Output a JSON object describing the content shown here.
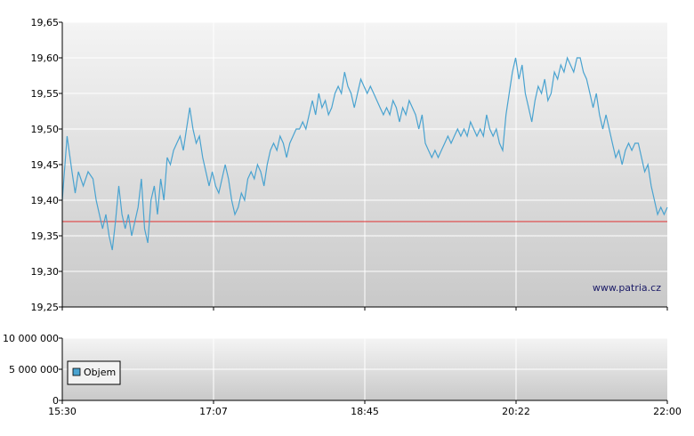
{
  "watermark": "www.patria.cz",
  "chart_data": [
    {
      "type": "line",
      "title": "",
      "xlabel": "",
      "ylabel": "",
      "x_ticks": [
        "15:30",
        "17:07",
        "18:45",
        "20:22",
        "22:00"
      ],
      "y_ticks": [
        "19,25",
        "19,30",
        "19,35",
        "19,40",
        "19,45",
        "19,50",
        "19,55",
        "19,60",
        "19,65"
      ],
      "ylim": [
        19.25,
        19.65
      ],
      "grid": true,
      "reference_line": {
        "value": 19.37,
        "color": "#e03030"
      },
      "series": [
        {
          "color": "#4aa3d0",
          "points": [
            [
              0.0,
              19.4
            ],
            [
              0.3,
              19.49
            ],
            [
              0.6,
              19.44
            ],
            [
              0.8,
              19.41
            ],
            [
              1.0,
              19.44
            ],
            [
              1.3,
              19.42
            ],
            [
              1.6,
              19.44
            ],
            [
              1.9,
              19.43
            ],
            [
              2.1,
              19.4
            ],
            [
              2.3,
              19.38
            ],
            [
              2.5,
              19.36
            ],
            [
              2.7,
              19.38
            ],
            [
              2.9,
              19.35
            ],
            [
              3.1,
              19.33
            ],
            [
              3.3,
              19.37
            ],
            [
              3.5,
              19.42
            ],
            [
              3.7,
              19.38
            ],
            [
              3.9,
              19.36
            ],
            [
              4.1,
              19.38
            ],
            [
              4.3,
              19.35
            ],
            [
              4.5,
              19.37
            ],
            [
              4.7,
              19.39
            ],
            [
              4.9,
              19.43
            ],
            [
              5.1,
              19.36
            ],
            [
              5.3,
              19.34
            ],
            [
              5.5,
              19.4
            ],
            [
              5.7,
              19.42
            ],
            [
              5.9,
              19.38
            ],
            [
              6.1,
              19.43
            ],
            [
              6.3,
              19.4
            ],
            [
              6.5,
              19.46
            ],
            [
              6.7,
              19.45
            ],
            [
              6.9,
              19.47
            ],
            [
              7.1,
              19.48
            ],
            [
              7.3,
              19.49
            ],
            [
              7.5,
              19.47
            ],
            [
              7.7,
              19.5
            ],
            [
              7.9,
              19.53
            ],
            [
              8.1,
              19.5
            ],
            [
              8.3,
              19.48
            ],
            [
              8.5,
              19.49
            ],
            [
              8.7,
              19.46
            ],
            [
              8.9,
              19.44
            ],
            [
              9.1,
              19.42
            ],
            [
              9.3,
              19.44
            ],
            [
              9.5,
              19.42
            ],
            [
              9.7,
              19.41
            ],
            [
              9.9,
              19.43
            ],
            [
              10.1,
              19.45
            ],
            [
              10.3,
              19.43
            ],
            [
              10.5,
              19.4
            ],
            [
              10.7,
              19.38
            ],
            [
              10.9,
              19.39
            ],
            [
              11.1,
              19.41
            ],
            [
              11.3,
              19.4
            ],
            [
              11.5,
              19.43
            ],
            [
              11.7,
              19.44
            ],
            [
              11.9,
              19.43
            ],
            [
              12.1,
              19.45
            ],
            [
              12.3,
              19.44
            ],
            [
              12.5,
              19.42
            ],
            [
              12.7,
              19.45
            ],
            [
              12.9,
              19.47
            ],
            [
              13.1,
              19.48
            ],
            [
              13.3,
              19.47
            ],
            [
              13.5,
              19.49
            ],
            [
              13.7,
              19.48
            ],
            [
              13.9,
              19.46
            ],
            [
              14.1,
              19.48
            ],
            [
              14.3,
              19.49
            ],
            [
              14.5,
              19.5
            ],
            [
              14.7,
              19.5
            ],
            [
              14.9,
              19.51
            ],
            [
              15.1,
              19.5
            ],
            [
              15.3,
              19.52
            ],
            [
              15.5,
              19.54
            ],
            [
              15.7,
              19.52
            ],
            [
              15.9,
              19.55
            ],
            [
              16.1,
              19.53
            ],
            [
              16.3,
              19.54
            ],
            [
              16.5,
              19.52
            ],
            [
              16.7,
              19.53
            ],
            [
              16.9,
              19.55
            ],
            [
              17.1,
              19.56
            ],
            [
              17.3,
              19.55
            ],
            [
              17.5,
              19.58
            ],
            [
              17.7,
              19.56
            ],
            [
              17.9,
              19.55
            ],
            [
              18.1,
              19.53
            ],
            [
              18.3,
              19.55
            ],
            [
              18.5,
              19.57
            ],
            [
              18.7,
              19.56
            ],
            [
              18.9,
              19.55
            ],
            [
              19.1,
              19.56
            ],
            [
              19.3,
              19.55
            ],
            [
              19.5,
              19.54
            ],
            [
              19.7,
              19.53
            ],
            [
              19.9,
              19.52
            ],
            [
              20.1,
              19.53
            ],
            [
              20.3,
              19.52
            ],
            [
              20.5,
              19.54
            ],
            [
              20.7,
              19.53
            ],
            [
              20.9,
              19.51
            ],
            [
              21.1,
              19.53
            ],
            [
              21.3,
              19.52
            ],
            [
              21.5,
              19.54
            ],
            [
              21.7,
              19.53
            ],
            [
              21.9,
              19.52
            ],
            [
              22.1,
              19.5
            ],
            [
              22.3,
              19.52
            ],
            [
              22.5,
              19.48
            ],
            [
              22.7,
              19.47
            ],
            [
              22.9,
              19.46
            ],
            [
              23.1,
              19.47
            ],
            [
              23.3,
              19.46
            ],
            [
              23.5,
              19.47
            ],
            [
              23.7,
              19.48
            ],
            [
              23.9,
              19.49
            ],
            [
              24.1,
              19.48
            ],
            [
              24.3,
              19.49
            ],
            [
              24.5,
              19.5
            ],
            [
              24.7,
              19.49
            ],
            [
              24.9,
              19.5
            ],
            [
              25.1,
              19.49
            ],
            [
              25.3,
              19.51
            ],
            [
              25.5,
              19.5
            ],
            [
              25.7,
              19.49
            ],
            [
              25.9,
              19.5
            ],
            [
              26.1,
              19.49
            ],
            [
              26.3,
              19.52
            ],
            [
              26.5,
              19.5
            ],
            [
              26.7,
              19.49
            ],
            [
              26.9,
              19.5
            ],
            [
              27.1,
              19.48
            ],
            [
              27.3,
              19.47
            ],
            [
              27.5,
              19.52
            ],
            [
              27.7,
              19.55
            ],
            [
              27.9,
              19.58
            ],
            [
              28.1,
              19.6
            ],
            [
              28.3,
              19.57
            ],
            [
              28.5,
              19.59
            ],
            [
              28.7,
              19.55
            ],
            [
              28.9,
              19.53
            ],
            [
              29.1,
              19.51
            ],
            [
              29.3,
              19.54
            ],
            [
              29.5,
              19.56
            ],
            [
              29.7,
              19.55
            ],
            [
              29.9,
              19.57
            ],
            [
              30.1,
              19.54
            ],
            [
              30.3,
              19.55
            ],
            [
              30.5,
              19.58
            ],
            [
              30.7,
              19.57
            ],
            [
              30.9,
              19.59
            ],
            [
              31.1,
              19.58
            ],
            [
              31.3,
              19.6
            ],
            [
              31.5,
              19.59
            ],
            [
              31.7,
              19.58
            ],
            [
              31.9,
              19.6
            ],
            [
              32.1,
              19.6
            ],
            [
              32.3,
              19.58
            ],
            [
              32.5,
              19.57
            ],
            [
              32.7,
              19.55
            ],
            [
              32.9,
              19.53
            ],
            [
              33.1,
              19.55
            ],
            [
              33.3,
              19.52
            ],
            [
              33.5,
              19.5
            ],
            [
              33.7,
              19.52
            ],
            [
              33.9,
              19.5
            ],
            [
              34.1,
              19.48
            ],
            [
              34.3,
              19.46
            ],
            [
              34.5,
              19.47
            ],
            [
              34.7,
              19.45
            ],
            [
              34.9,
              19.47
            ],
            [
              35.1,
              19.48
            ],
            [
              35.3,
              19.47
            ],
            [
              35.5,
              19.48
            ],
            [
              35.7,
              19.48
            ],
            [
              35.9,
              19.46
            ],
            [
              36.1,
              19.44
            ],
            [
              36.3,
              19.45
            ],
            [
              36.5,
              19.42
            ],
            [
              36.7,
              19.4
            ],
            [
              36.9,
              19.38
            ],
            [
              37.1,
              19.39
            ],
            [
              37.3,
              19.38
            ],
            [
              37.5,
              19.39
            ]
          ]
        }
      ]
    },
    {
      "type": "bar",
      "title": "",
      "xlabel": "",
      "ylabel": "",
      "y_ticks": [
        "0",
        "5 000 000",
        "10 000 000"
      ],
      "ylim": [
        0,
        10000000
      ],
      "grid": true,
      "series": [
        {
          "name": "Objem",
          "color": "#4aa3d0",
          "values": []
        }
      ],
      "legend": {
        "placement": "bottom-left",
        "label": "Objem",
        "color": "#4aa3d0"
      }
    }
  ]
}
